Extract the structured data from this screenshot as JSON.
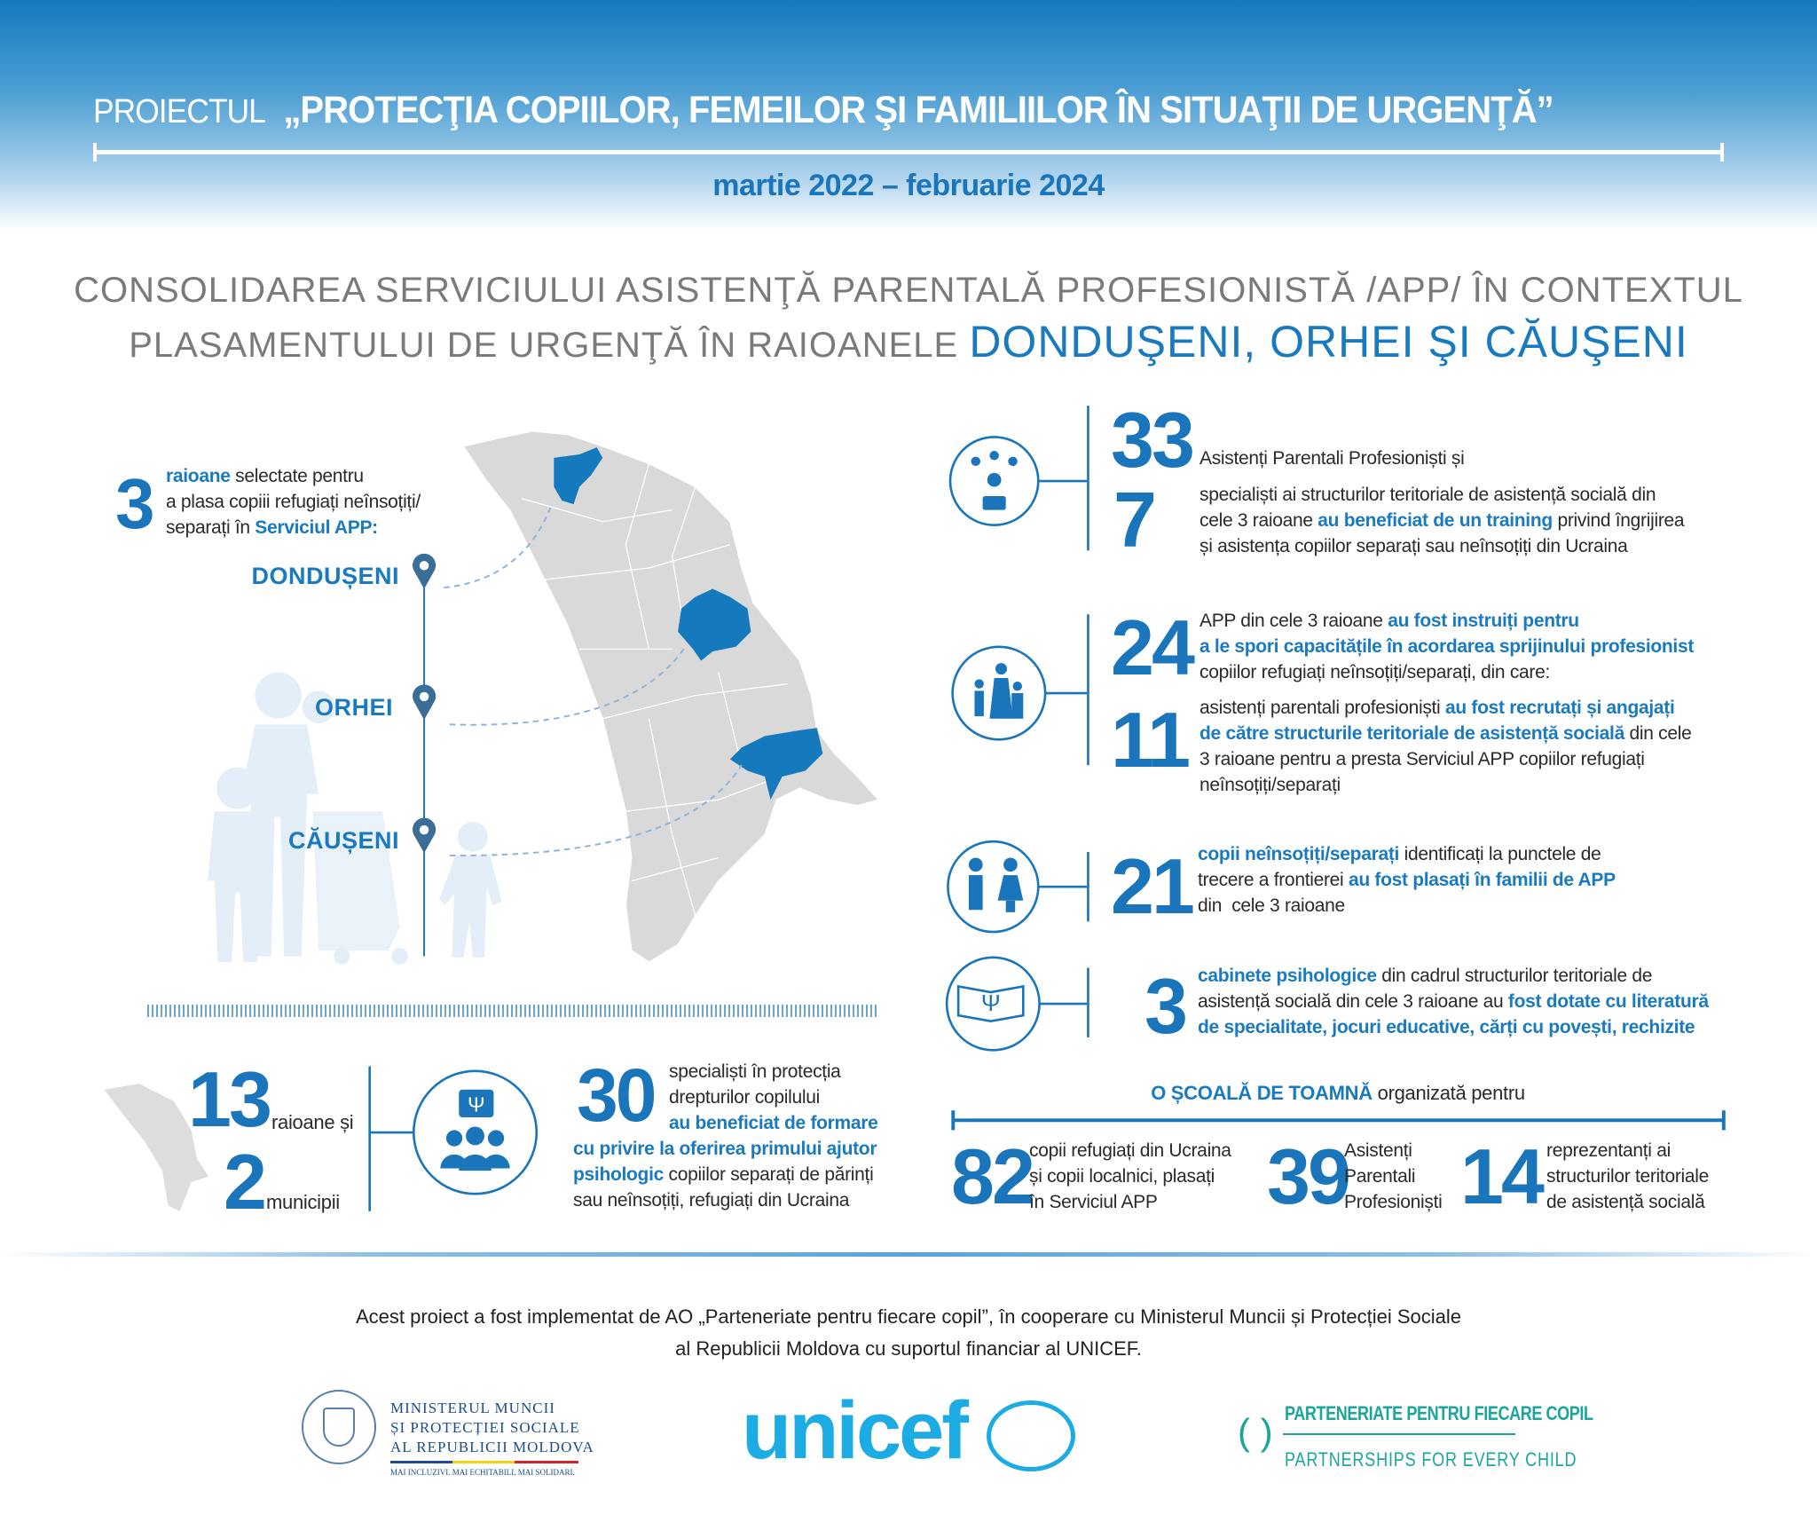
{
  "header": {
    "prefix": "PROIECTUL",
    "title": "„PROTECŢIA COPIILOR, FEMEILOR ŞI FAMILIILOR ÎN SITUAŢII DE URGENŢĂ”",
    "period": "martie 2022 – februarie 2024"
  },
  "subtitle": {
    "line1": "CONSOLIDAREA SERVICIULUI ASISTENŢĂ PARENTALĂ PROFESIONISTĂ /APP/ ÎN CONTEXTUL",
    "line2": "PLASAMENTULUI DE URGENŢĂ ÎN RAIOANELE",
    "line2_highlight": "DONDUŞENI, ORHEI ŞI CĂUŞENI"
  },
  "districts": {
    "count": "3",
    "text": [
      {
        "t": "raioane",
        "b": true
      },
      {
        "t": " selectate pentru"
      },
      {
        "t": "\na plasa copiii refugiați neînsoțiți/\nseparați în "
      },
      {
        "t": "Serviciul APP:",
        "b": true
      }
    ],
    "items": [
      "DONDUȘENI",
      "ORHEI",
      "CĂUȘENI"
    ]
  },
  "colors": {
    "accent": "#1a75bb",
    "map": "#d9d9d9",
    "highlight": "#1479bd"
  },
  "national": {
    "raioane_count": "13",
    "raioane_label": "raioane și",
    "municipii_count": "2",
    "municipii_label": "municipii",
    "specialists_count": "30",
    "specialists_text": [
      {
        "t": "specialiști în protecția\ndrepturilor copilului\n"
      },
      {
        "t": "au beneficiat de formare",
        "b": true
      }
    ],
    "specialists_text2": [
      {
        "t": "cu privire la oferirea primului ajutor\npsihologic",
        "b": true
      },
      {
        "t": " copiilor separați de părinți\nsau neînsoțiți, refugiați din Ucraina"
      }
    ]
  },
  "stats": [
    {
      "icon": "group-training-icon",
      "n1": "33",
      "t1": [
        {
          "t": "Asistenți Parentali Profesioniști și"
        }
      ],
      "n2": "7",
      "t2": [
        {
          "t": "specialiști ai structurilor teritoriale de asistență socială din\ncele 3 raioane "
        },
        {
          "t": "au beneficiat de un training",
          "b": true
        },
        {
          "t": " privind îngrijirea\nși asistența copiilor separați sau neînsoțiți din Ucraina"
        }
      ]
    },
    {
      "icon": "family-icon",
      "n1": "24",
      "t1": [
        {
          "t": "APP din cele 3 raioane "
        },
        {
          "t": "au fost instruiți pentru\na le spori capacitățile în acordarea sprijinului profesionist",
          "b": true
        },
        {
          "t": "\ncopiilor refugiați neînsoțiți/separați, din care:"
        }
      ],
      "n2": "11",
      "t2": [
        {
          "t": "asistenți parentali profesioniști "
        },
        {
          "t": "au fost recrutați și angajați\nde către structurile teritoriale de asistență socială",
          "b": true
        },
        {
          "t": " din cele\n3 raioane pentru a presta Serviciul APP copiilor refugiați\nneînsoțiți/separați"
        }
      ]
    },
    {
      "icon": "children-icon",
      "n1": "21",
      "t1": [
        {
          "t": "copii neînsoțiți/separați",
          "b": true
        },
        {
          "t": " identificați la punctele de\ntrecere a frontierei "
        },
        {
          "t": "au fost plasați în familii de APP",
          "b": true
        },
        {
          "t": "\ndin  cele 3 raioane"
        }
      ]
    },
    {
      "icon": "psychology-book-icon",
      "n1": "3",
      "t1": [
        {
          "t": "cabinete psihologice",
          "b": true
        },
        {
          "t": " din cadrul structurilor teritoriale de\nasistență socială din cele 3 raioane au "
        },
        {
          "t": "fost dotate cu literatură\nde specialitate, jocuri educative, cărți cu povești, rechizite",
          "b": true
        }
      ]
    }
  ],
  "school": {
    "title": "O ȘCOALĂ DE TOAMNĂ",
    "title_rest": " organizată pentru",
    "items": [
      {
        "n": "82",
        "t": "copii refugiați din Ucraina\nși copii localnici, plasați\nîn Serviciul APP"
      },
      {
        "n": "39",
        "t": "Asistenți\nParentali\nProfesioniști"
      },
      {
        "n": "14",
        "t": "reprezentanți ai\nstructurilor teritoriale\nde asistență socială"
      }
    ]
  },
  "footer": {
    "line1": "Acest proiect a fost implementat de AO „Parteneriate pentru fiecare copil”, în cooperare cu Ministerul Muncii și Protecției Sociale",
    "line2": "al Republicii Moldova cu suportul financiar al UNICEF."
  },
  "logos": {
    "ministry": [
      "MINISTERUL MUNCII",
      "ȘI PROTECȚIEI SOCIALE",
      "AL REPUBLICII MOLDOVA"
    ],
    "ministry_motto": "MAI INCLUZIVI. MAI ECHITABILI. MAI SOLIDARI.",
    "ministry_seal": "GUVERNUL REPUBLICII MOLDOVA",
    "unicef": "unicef",
    "partnership_ro": "PARTENERIATE PENTRU FIECARE COPIL",
    "partnership_en": "PARTNERSHIPS FOR EVERY CHILD"
  }
}
